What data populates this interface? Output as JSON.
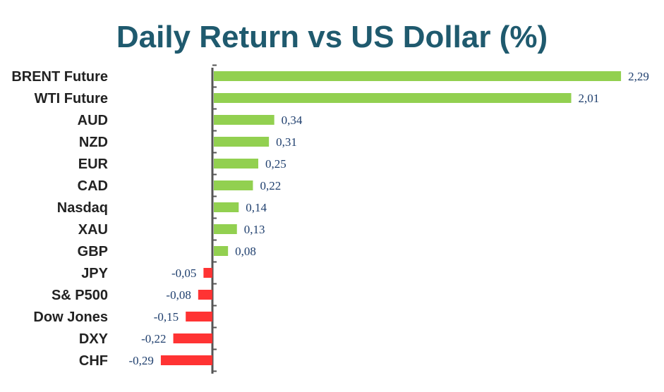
{
  "chart_data": {
    "type": "bar",
    "orientation": "horizontal",
    "title": "Daily Return vs US Dollar (%)",
    "categories": [
      "BRENT Future",
      "WTI Future",
      "AUD",
      "NZD",
      "EUR",
      "CAD",
      "Nasdaq",
      "XAU",
      "GBP",
      "JPY",
      "S& P500",
      "Dow Jones",
      "DXY",
      "CHF"
    ],
    "values": [
      2.29,
      2.01,
      0.34,
      0.31,
      0.25,
      0.22,
      0.14,
      0.13,
      0.08,
      -0.05,
      -0.08,
      -0.15,
      -0.22,
      -0.29
    ],
    "value_labels": [
      "2,29",
      "2,01",
      "0,34",
      "0,31",
      "0,25",
      "0,22",
      "0,14",
      "0,13",
      "0,08",
      "-0,05",
      "-0,08",
      "-0,15",
      "-0,22",
      "-0,29"
    ],
    "xlabel": "",
    "ylabel": "",
    "grid": false,
    "legend": "none",
    "colors": {
      "positive": "#92d050",
      "negative": "#ff3333",
      "axis": "#555555",
      "title": "#1f5a6e",
      "value_text": "#1f3f6e"
    }
  }
}
